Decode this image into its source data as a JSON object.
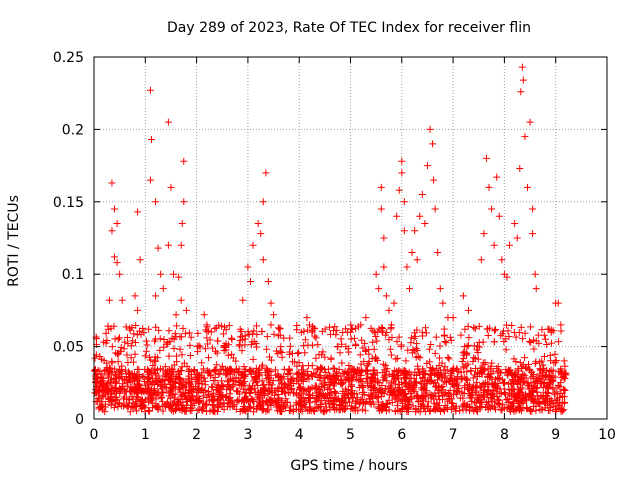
{
  "chart_data": {
    "type": "scatter",
    "title": "Day 289 of 2023, Rate Of TEC Index for receiver flin",
    "xlabel": "GPS time / hours",
    "ylabel": "ROTI / TECUs",
    "xlim": [
      0,
      10
    ],
    "ylim": [
      0,
      0.25
    ],
    "x_ticks": [
      0,
      1,
      2,
      3,
      4,
      5,
      6,
      7,
      8,
      9,
      10
    ],
    "y_ticks": [
      0,
      0.05,
      0.1,
      0.15,
      0.2,
      0.25
    ],
    "x_tick_labels": [
      "0",
      "1",
      "2",
      "3",
      "4",
      "5",
      "6",
      "7",
      "8",
      "9",
      "10"
    ],
    "y_tick_labels": [
      "0",
      "0.05",
      "0.1",
      "0.15",
      "0.2",
      "0.25"
    ],
    "grid": true,
    "marker": "+",
    "color": "#ff0000",
    "data_x_range": [
      0,
      9.2
    ],
    "series": [
      {
        "name": "flin",
        "points": [
          [
            0.35,
            0.163
          ],
          [
            0.4,
            0.145
          ],
          [
            0.45,
            0.135
          ],
          [
            0.35,
            0.13
          ],
          [
            0.4,
            0.112
          ],
          [
            0.45,
            0.108
          ],
          [
            0.5,
            0.1
          ],
          [
            0.3,
            0.082
          ],
          [
            0.55,
            0.082
          ],
          [
            0.85,
            0.143
          ],
          [
            0.9,
            0.11
          ],
          [
            0.8,
            0.085
          ],
          [
            0.85,
            0.075
          ],
          [
            1.1,
            0.227
          ],
          [
            1.12,
            0.193
          ],
          [
            1.1,
            0.165
          ],
          [
            1.2,
            0.15
          ],
          [
            1.25,
            0.118
          ],
          [
            1.3,
            0.1
          ],
          [
            1.35,
            0.09
          ],
          [
            1.2,
            0.085
          ],
          [
            1.45,
            0.205
          ],
          [
            1.5,
            0.16
          ],
          [
            1.45,
            0.12
          ],
          [
            1.55,
            0.1
          ],
          [
            1.75,
            0.178
          ],
          [
            1.75,
            0.15
          ],
          [
            1.72,
            0.135
          ],
          [
            1.7,
            0.12
          ],
          [
            1.65,
            0.098
          ],
          [
            1.7,
            0.082
          ],
          [
            1.8,
            0.075
          ],
          [
            1.6,
            0.072
          ],
          [
            2.15,
            0.072
          ],
          [
            2.2,
            0.065
          ],
          [
            2.85,
            0.062
          ],
          [
            2.9,
            0.082
          ],
          [
            3.0,
            0.105
          ],
          [
            3.05,
            0.095
          ],
          [
            3.1,
            0.12
          ],
          [
            3.2,
            0.135
          ],
          [
            3.25,
            0.128
          ],
          [
            3.3,
            0.15
          ],
          [
            3.35,
            0.17
          ],
          [
            3.3,
            0.11
          ],
          [
            3.4,
            0.095
          ],
          [
            3.45,
            0.08
          ],
          [
            3.5,
            0.072
          ],
          [
            3.45,
            0.065
          ],
          [
            4.15,
            0.07
          ],
          [
            4.2,
            0.065
          ],
          [
            4.25,
            0.06
          ],
          [
            5.0,
            0.06
          ],
          [
            5.2,
            0.065
          ],
          [
            5.3,
            0.07
          ],
          [
            5.5,
            0.1
          ],
          [
            5.55,
            0.09
          ],
          [
            5.6,
            0.16
          ],
          [
            5.6,
            0.145
          ],
          [
            5.65,
            0.125
          ],
          [
            5.65,
            0.105
          ],
          [
            5.7,
            0.085
          ],
          [
            5.75,
            0.075
          ],
          [
            5.8,
            0.065
          ],
          [
            5.85,
            0.08
          ],
          [
            5.9,
            0.14
          ],
          [
            5.95,
            0.158
          ],
          [
            6.0,
            0.178
          ],
          [
            6.0,
            0.17
          ],
          [
            6.05,
            0.15
          ],
          [
            6.05,
            0.13
          ],
          [
            6.1,
            0.105
          ],
          [
            6.15,
            0.09
          ],
          [
            6.2,
            0.115
          ],
          [
            6.25,
            0.13
          ],
          [
            6.3,
            0.11
          ],
          [
            6.35,
            0.14
          ],
          [
            6.4,
            0.155
          ],
          [
            6.45,
            0.135
          ],
          [
            6.5,
            0.175
          ],
          [
            6.55,
            0.2
          ],
          [
            6.6,
            0.19
          ],
          [
            6.62,
            0.165
          ],
          [
            6.65,
            0.145
          ],
          [
            6.7,
            0.115
          ],
          [
            6.75,
            0.09
          ],
          [
            6.8,
            0.08
          ],
          [
            6.9,
            0.07
          ],
          [
            7.0,
            0.07
          ],
          [
            7.2,
            0.085
          ],
          [
            7.3,
            0.075
          ],
          [
            7.55,
            0.11
          ],
          [
            7.6,
            0.128
          ],
          [
            7.65,
            0.18
          ],
          [
            7.7,
            0.16
          ],
          [
            7.75,
            0.145
          ],
          [
            7.8,
            0.12
          ],
          [
            7.85,
            0.167
          ],
          [
            7.9,
            0.14
          ],
          [
            7.95,
            0.11
          ],
          [
            8.0,
            0.1
          ],
          [
            8.05,
            0.098
          ],
          [
            8.1,
            0.12
          ],
          [
            8.2,
            0.135
          ],
          [
            8.25,
            0.125
          ],
          [
            8.3,
            0.173
          ],
          [
            8.32,
            0.226
          ],
          [
            8.35,
            0.243
          ],
          [
            8.37,
            0.234
          ],
          [
            8.4,
            0.195
          ],
          [
            8.45,
            0.16
          ],
          [
            8.5,
            0.205
          ],
          [
            8.55,
            0.145
          ],
          [
            8.55,
            0.128
          ],
          [
            8.6,
            0.1
          ],
          [
            8.62,
            0.09
          ],
          [
            9.0,
            0.08
          ],
          [
            9.05,
            0.08
          ],
          [
            9.1,
            0.065
          ]
        ],
        "dense_band": {
          "x_from": 0.0,
          "x_to": 9.2,
          "y_low": 0.005,
          "y_high": 0.035,
          "spike_y_high": 0.065
        }
      }
    ]
  }
}
